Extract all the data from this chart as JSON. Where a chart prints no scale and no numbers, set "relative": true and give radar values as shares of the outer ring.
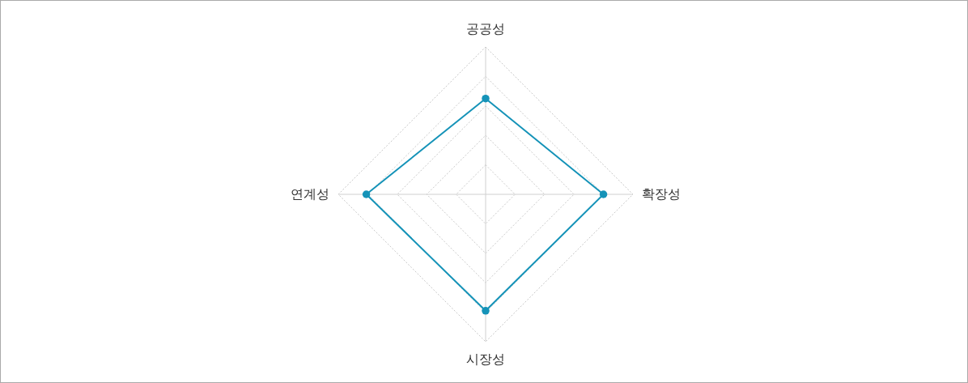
{
  "chart_data": {
    "type": "radar",
    "relative": true,
    "categories": [
      "공공성",
      "확장성",
      "시장성",
      "연계성"
    ],
    "series": [
      {
        "color": "#1593b8",
        "values": [
          0.65,
          0.8,
          0.79,
          0.81
        ]
      }
    ],
    "grid": true,
    "marker": "circle",
    "line_style": "solid"
  }
}
